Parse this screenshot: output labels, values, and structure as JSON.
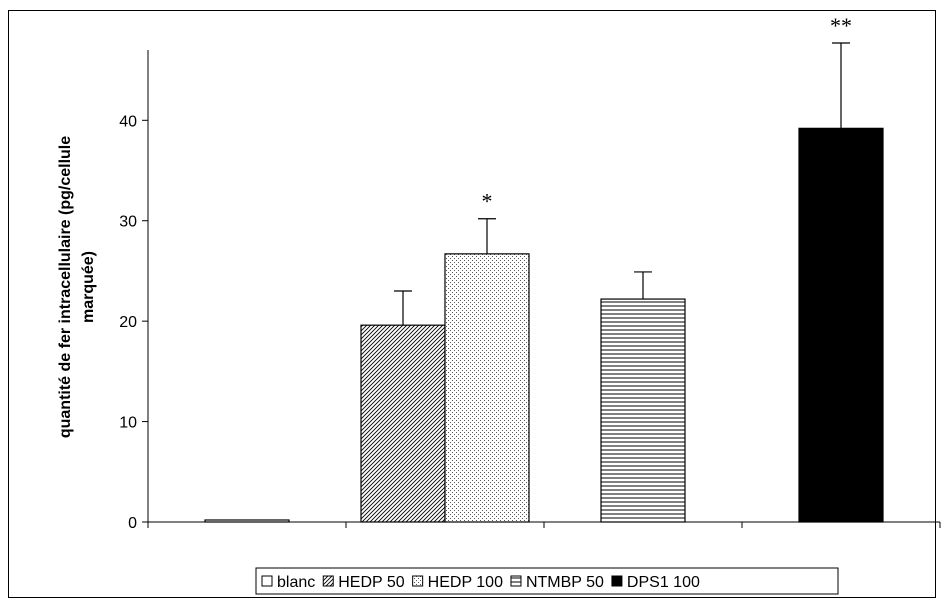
{
  "chart_data": {
    "type": "bar",
    "ylabel_line1": "quantité de fer intracellulaire (pg/cellule",
    "ylabel_line2": "marquée)",
    "ylim": [
      0,
      47
    ],
    "yticks": [
      0,
      10,
      20,
      30,
      40
    ],
    "grid": false,
    "legend_placement": "bottom",
    "groups": [
      {
        "series": [
          "blanc"
        ]
      },
      {
        "series": [
          "HEDP 50",
          "HEDP 100"
        ]
      },
      {
        "series": [
          "NTMBP 50"
        ]
      },
      {
        "series": [
          "DPS1 100"
        ]
      }
    ],
    "series": [
      {
        "name": "blanc",
        "value": 0.2,
        "error": 0,
        "annotation": "",
        "fill": "white",
        "color": "#ffffff"
      },
      {
        "name": "HEDP 50",
        "value": 19.6,
        "error": 3.4,
        "annotation": "",
        "fill": "diagonal",
        "color": "#ffffff"
      },
      {
        "name": "HEDP 100",
        "value": 26.7,
        "error": 3.5,
        "annotation": "*",
        "fill": "dots",
        "color": "#ffffff"
      },
      {
        "name": "NTMBP 50",
        "value": 22.2,
        "error": 2.7,
        "annotation": "",
        "fill": "horizontal",
        "color": "#ffffff"
      },
      {
        "name": "DPS1 100",
        "value": 39.2,
        "error": 8.5,
        "annotation": "**",
        "fill": "solid",
        "color": "#000000"
      }
    ]
  }
}
